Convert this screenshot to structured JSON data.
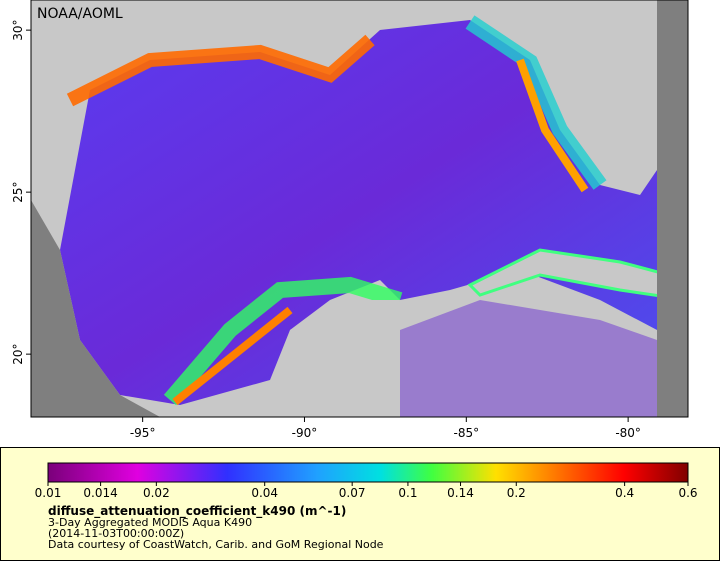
{
  "map": {
    "watermark": "NOAA/AOML",
    "xlim": [
      -98.45,
      -78.15
    ],
    "ylim": [
      18.06,
      30.93
    ],
    "xticks": [
      {
        "value": -95,
        "label": "-95°"
      },
      {
        "value": -90,
        "label": "-90°"
      },
      {
        "value": -85,
        "label": "-85°"
      },
      {
        "value": -80,
        "label": "-80°"
      }
    ],
    "yticks": [
      {
        "value": 20,
        "label": "20°"
      },
      {
        "value": 25,
        "label": "25°"
      },
      {
        "value": 30,
        "label": "30°"
      }
    ]
  },
  "colorbar": {
    "scale": "log",
    "lim": [
      0.01,
      0.6
    ],
    "ticks": [
      0.01,
      0.014,
      0.02,
      0.04,
      0.07,
      0.1,
      0.14,
      0.2,
      0.4,
      0.6
    ]
  },
  "legend": {
    "title": "diffuse_attenuation_coefficient_k490 (m^-1)",
    "lines": [
      "3-Day Aggregated MODIS Aqua K490",
      "(2014-11-03T00:00:00Z)",
      "Data courtesy of CoastWatch, Carib. and GoM Regional Node"
    ]
  }
}
